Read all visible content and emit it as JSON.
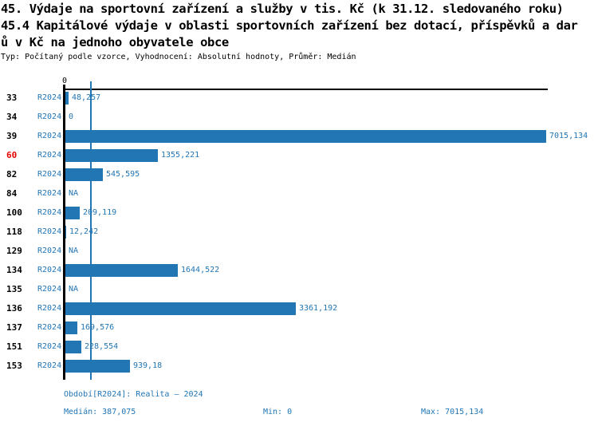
{
  "title": {
    "line1": "45. Výdaje na sportovní zařízení a služby v tis. Kč (k 31.12. sledovaného roku)",
    "line2": "45.4 Kapitálové výdaje v oblasti sportovních zařízení bez dotací, příspěvků a dar",
    "line3": "ů v Kč na jednoho obyvatele obce",
    "meta": "Typ: Počítaný podle vzorce, Vyhodnocení: Absolutní hodnoty, Průměr: Medián"
  },
  "colors": {
    "bar_blue": "#2276b4",
    "text_blue": "#2276b4",
    "highlight_red": "#e60000",
    "axis_black": "#000000"
  },
  "axis": {
    "zero_tick_label": "0"
  },
  "chart_data": {
    "type": "bar",
    "orientation": "horizontal",
    "title": "45.4 Kapitálové výdaje v oblasti sportovních zařízení bez dotací, příspěvků a darů v Kč na jednoho obyvatele obce",
    "series_label": "R2024",
    "categories": [
      "33",
      "34",
      "39",
      "60",
      "82",
      "84",
      "100",
      "118",
      "129",
      "134",
      "135",
      "136",
      "137",
      "151",
      "153"
    ],
    "values": [
      48.257,
      0,
      7015.134,
      1355.221,
      545.595,
      null,
      209.119,
      12.242,
      null,
      1644.522,
      null,
      3361.192,
      169.576,
      228.554,
      939.18
    ],
    "value_labels": [
      "48,257",
      "0",
      "7015,134",
      "1355,221",
      "545,595",
      "NA",
      "209,119",
      "12,242",
      "NA",
      "1644,522",
      "NA",
      "3361,192",
      "169,576",
      "228,554",
      "939,18"
    ],
    "highlighted_category": "60",
    "xlim": [
      0,
      7015.134
    ],
    "median_value": 387.075,
    "legend_position": "none",
    "grid": false
  },
  "footer": {
    "period": "Období[R2024]: Realita – 2024",
    "median": "Medián: 387,075",
    "min": "Min: 0",
    "max": "Max: 7015,134"
  }
}
